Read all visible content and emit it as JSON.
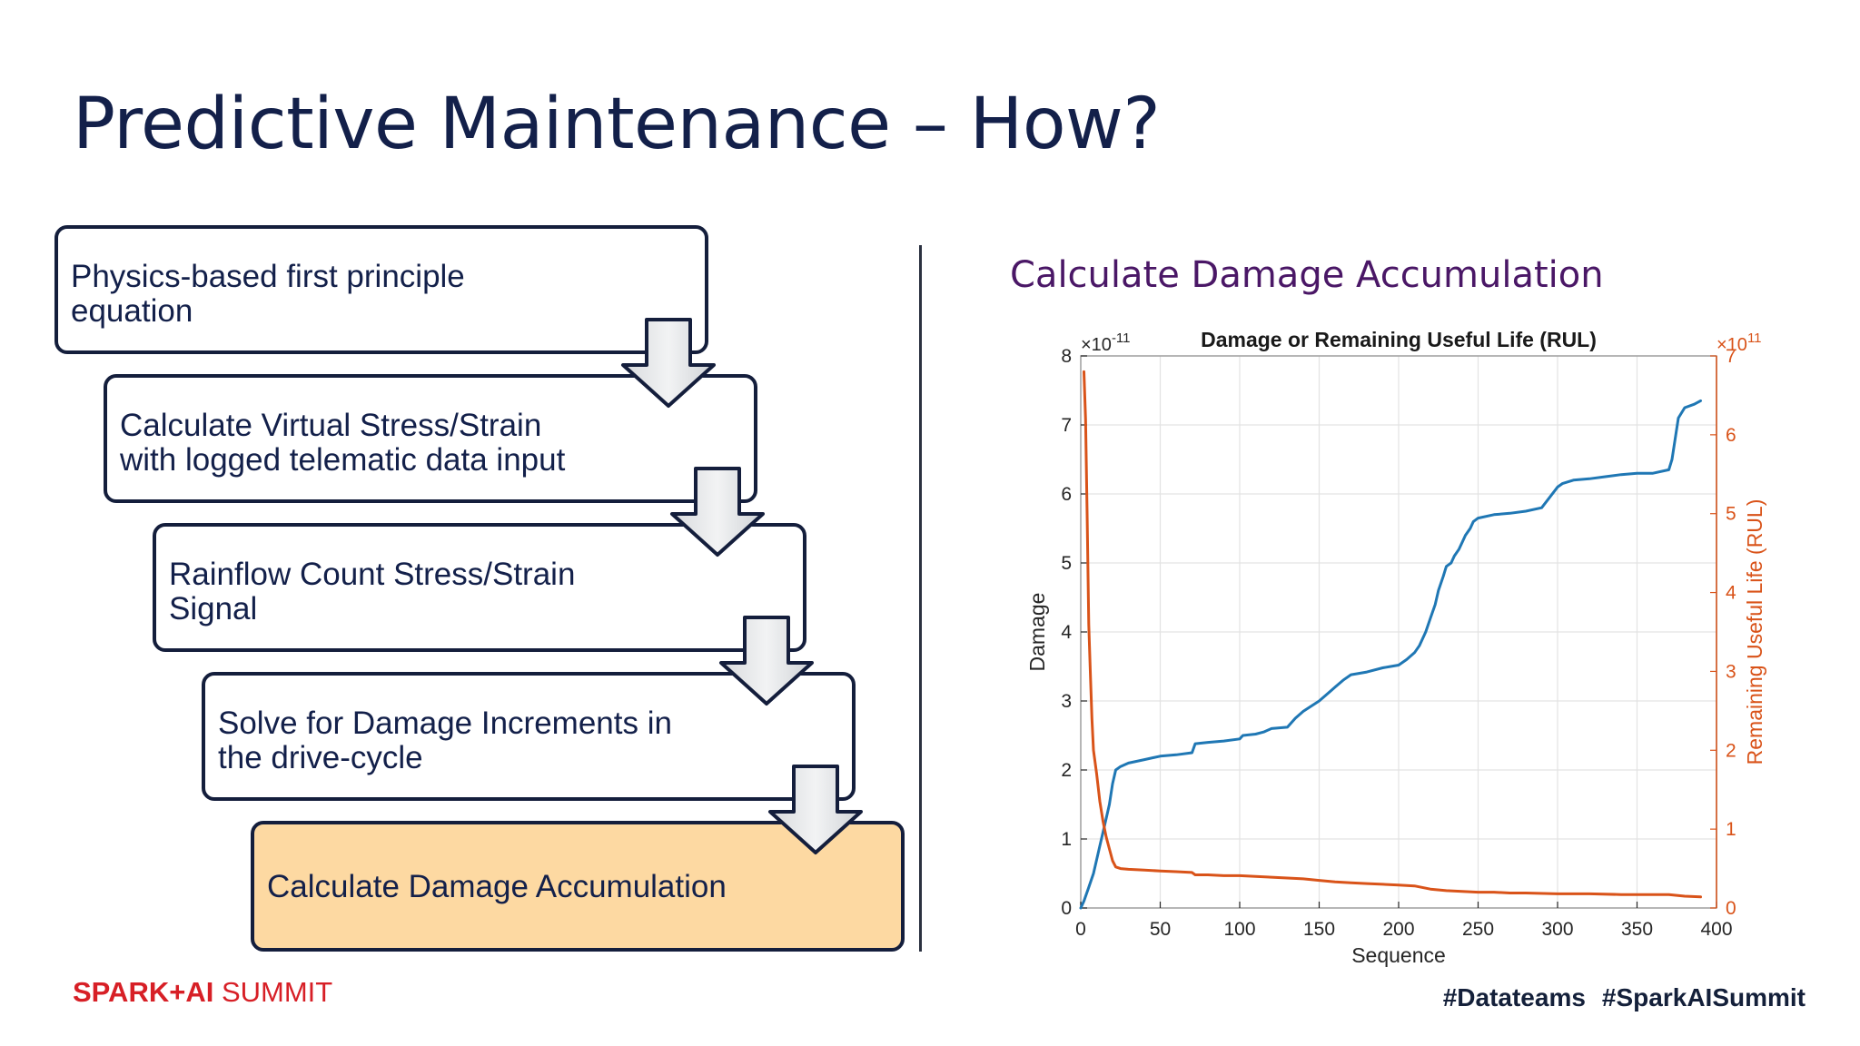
{
  "slide": {
    "title": "Predictive Maintenance – How?"
  },
  "flow": {
    "steps": [
      {
        "line1": "Physics-based first principle",
        "line2": "equation"
      },
      {
        "line1": "Calculate Virtual Stress/Strain",
        "line2": "with logged telematic data input"
      },
      {
        "line1": "Rainflow Count Stress/Strain",
        "line2": "Signal"
      },
      {
        "line1": "Solve for Damage Increments in",
        "line2": "the drive-cycle"
      },
      {
        "line1": "Calculate Damage Accumulation",
        "line2": ""
      }
    ],
    "final_fill": "#fdd9a2",
    "border_color": "#141e3c",
    "arrow_icon": "down-arrow-icon"
  },
  "chart_section": {
    "heading": "Calculate Damage Accumulation"
  },
  "chart_data": {
    "type": "line",
    "title": "Damage or Remaining Useful Life (RUL)",
    "xlabel": "Sequence",
    "ylabel_left": "Damage",
    "ylabel_right": "Remaining Useful Life (RUL)",
    "left_exponent": {
      "base": "×10",
      "exp": "-11"
    },
    "right_exponent": {
      "base": "×10",
      "exp": "11"
    },
    "xlim": [
      0,
      400
    ],
    "ylim_left": [
      0,
      8
    ],
    "ylim_right": [
      0,
      7
    ],
    "xticks": [
      0,
      50,
      100,
      150,
      200,
      250,
      300,
      350,
      400
    ],
    "yticks_left": [
      0,
      1,
      2,
      3,
      4,
      5,
      6,
      7,
      8
    ],
    "yticks_right": [
      0,
      1,
      2,
      3,
      4,
      5,
      6,
      7
    ],
    "grid": true,
    "series": [
      {
        "name": "Damage",
        "axis": "left",
        "color": "#1f77b4",
        "x": [
          0,
          2,
          5,
          8,
          10,
          12,
          15,
          18,
          20,
          22,
          25,
          30,
          40,
          50,
          60,
          70,
          72,
          80,
          90,
          100,
          102,
          110,
          115,
          120,
          130,
          135,
          140,
          150,
          155,
          160,
          165,
          170,
          175,
          180,
          190,
          195,
          200,
          205,
          210,
          213,
          217,
          220,
          223,
          225,
          228,
          230,
          233,
          235,
          238,
          240,
          242,
          245,
          247,
          250,
          260,
          270,
          280,
          290,
          300,
          303,
          310,
          320,
          330,
          340,
          350,
          360,
          370,
          372,
          374,
          376,
          380,
          386,
          390
        ],
        "y": [
          0,
          0.1,
          0.3,
          0.5,
          0.7,
          0.9,
          1.2,
          1.5,
          1.8,
          2.0,
          2.05,
          2.1,
          2.15,
          2.2,
          2.22,
          2.25,
          2.38,
          2.4,
          2.42,
          2.45,
          2.5,
          2.52,
          2.55,
          2.6,
          2.62,
          2.75,
          2.85,
          3.0,
          3.1,
          3.2,
          3.3,
          3.38,
          3.4,
          3.42,
          3.48,
          3.5,
          3.52,
          3.6,
          3.7,
          3.8,
          4.0,
          4.2,
          4.4,
          4.6,
          4.8,
          4.95,
          5.0,
          5.1,
          5.2,
          5.3,
          5.4,
          5.5,
          5.6,
          5.65,
          5.7,
          5.72,
          5.75,
          5.8,
          6.1,
          6.15,
          6.2,
          6.22,
          6.25,
          6.28,
          6.3,
          6.3,
          6.35,
          6.5,
          6.8,
          7.1,
          7.25,
          7.3,
          7.35
        ]
      },
      {
        "name": "Remaining Useful Life (RUL)",
        "axis": "right",
        "color": "#d95319",
        "x": [
          2,
          3,
          4,
          5,
          6,
          7,
          8,
          10,
          12,
          14,
          16,
          18,
          20,
          22,
          25,
          30,
          40,
          50,
          60,
          70,
          72,
          80,
          90,
          100,
          110,
          120,
          130,
          140,
          150,
          160,
          170,
          180,
          190,
          200,
          210,
          220,
          230,
          240,
          250,
          260,
          270,
          280,
          300,
          320,
          340,
          360,
          370,
          380,
          390
        ],
        "y": [
          6.8,
          6.2,
          5.0,
          3.6,
          3.0,
          2.4,
          2.0,
          1.7,
          1.35,
          1.1,
          0.9,
          0.75,
          0.6,
          0.52,
          0.5,
          0.49,
          0.48,
          0.47,
          0.46,
          0.45,
          0.42,
          0.42,
          0.41,
          0.41,
          0.4,
          0.39,
          0.38,
          0.37,
          0.35,
          0.33,
          0.32,
          0.31,
          0.3,
          0.29,
          0.28,
          0.24,
          0.22,
          0.21,
          0.2,
          0.2,
          0.19,
          0.19,
          0.18,
          0.18,
          0.17,
          0.17,
          0.17,
          0.15,
          0.14
        ]
      }
    ]
  },
  "footer": {
    "logo_brand": "SPARK+AI",
    "logo_suffix": " SUMMIT",
    "hashtags": [
      "#Datateams",
      "#SparkAISummit"
    ]
  }
}
